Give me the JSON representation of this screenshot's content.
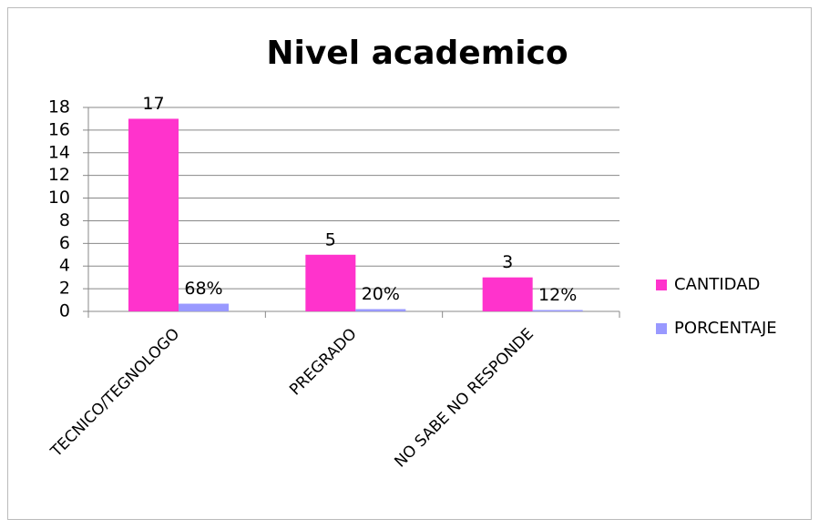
{
  "chart_data": {
    "type": "bar",
    "title": "Nivel academico",
    "categories": [
      "TECNICO/TEGNOLOGO",
      "PREGRADO",
      "NO SABE NO RESPONDE"
    ],
    "series": [
      {
        "name": "CANTIDAD",
        "color": "#ff33cc",
        "values": [
          17,
          5,
          3
        ]
      },
      {
        "name": "PORCENTAJE",
        "color": "#9999ff",
        "values": [
          0.68,
          0.2,
          0.12
        ],
        "value_labels": [
          "68%",
          "20%",
          "12%"
        ]
      }
    ],
    "ylim": [
      0,
      18
    ],
    "yticks": [
      0,
      2,
      4,
      6,
      8,
      10,
      12,
      14,
      16,
      18
    ],
    "grid": true,
    "legend": "right"
  }
}
